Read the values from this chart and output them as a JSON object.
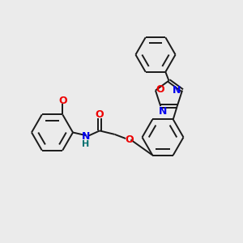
{
  "background_color": "#ebebeb",
  "bond_color": "#1a1a1a",
  "atom_colors": {
    "N": "#0000ee",
    "O": "#ee0000",
    "H": "#007070",
    "C": "#1a1a1a"
  },
  "lw": 1.4,
  "fs": 9.0,
  "r_benzene": 0.85,
  "r_inner": 0.6
}
